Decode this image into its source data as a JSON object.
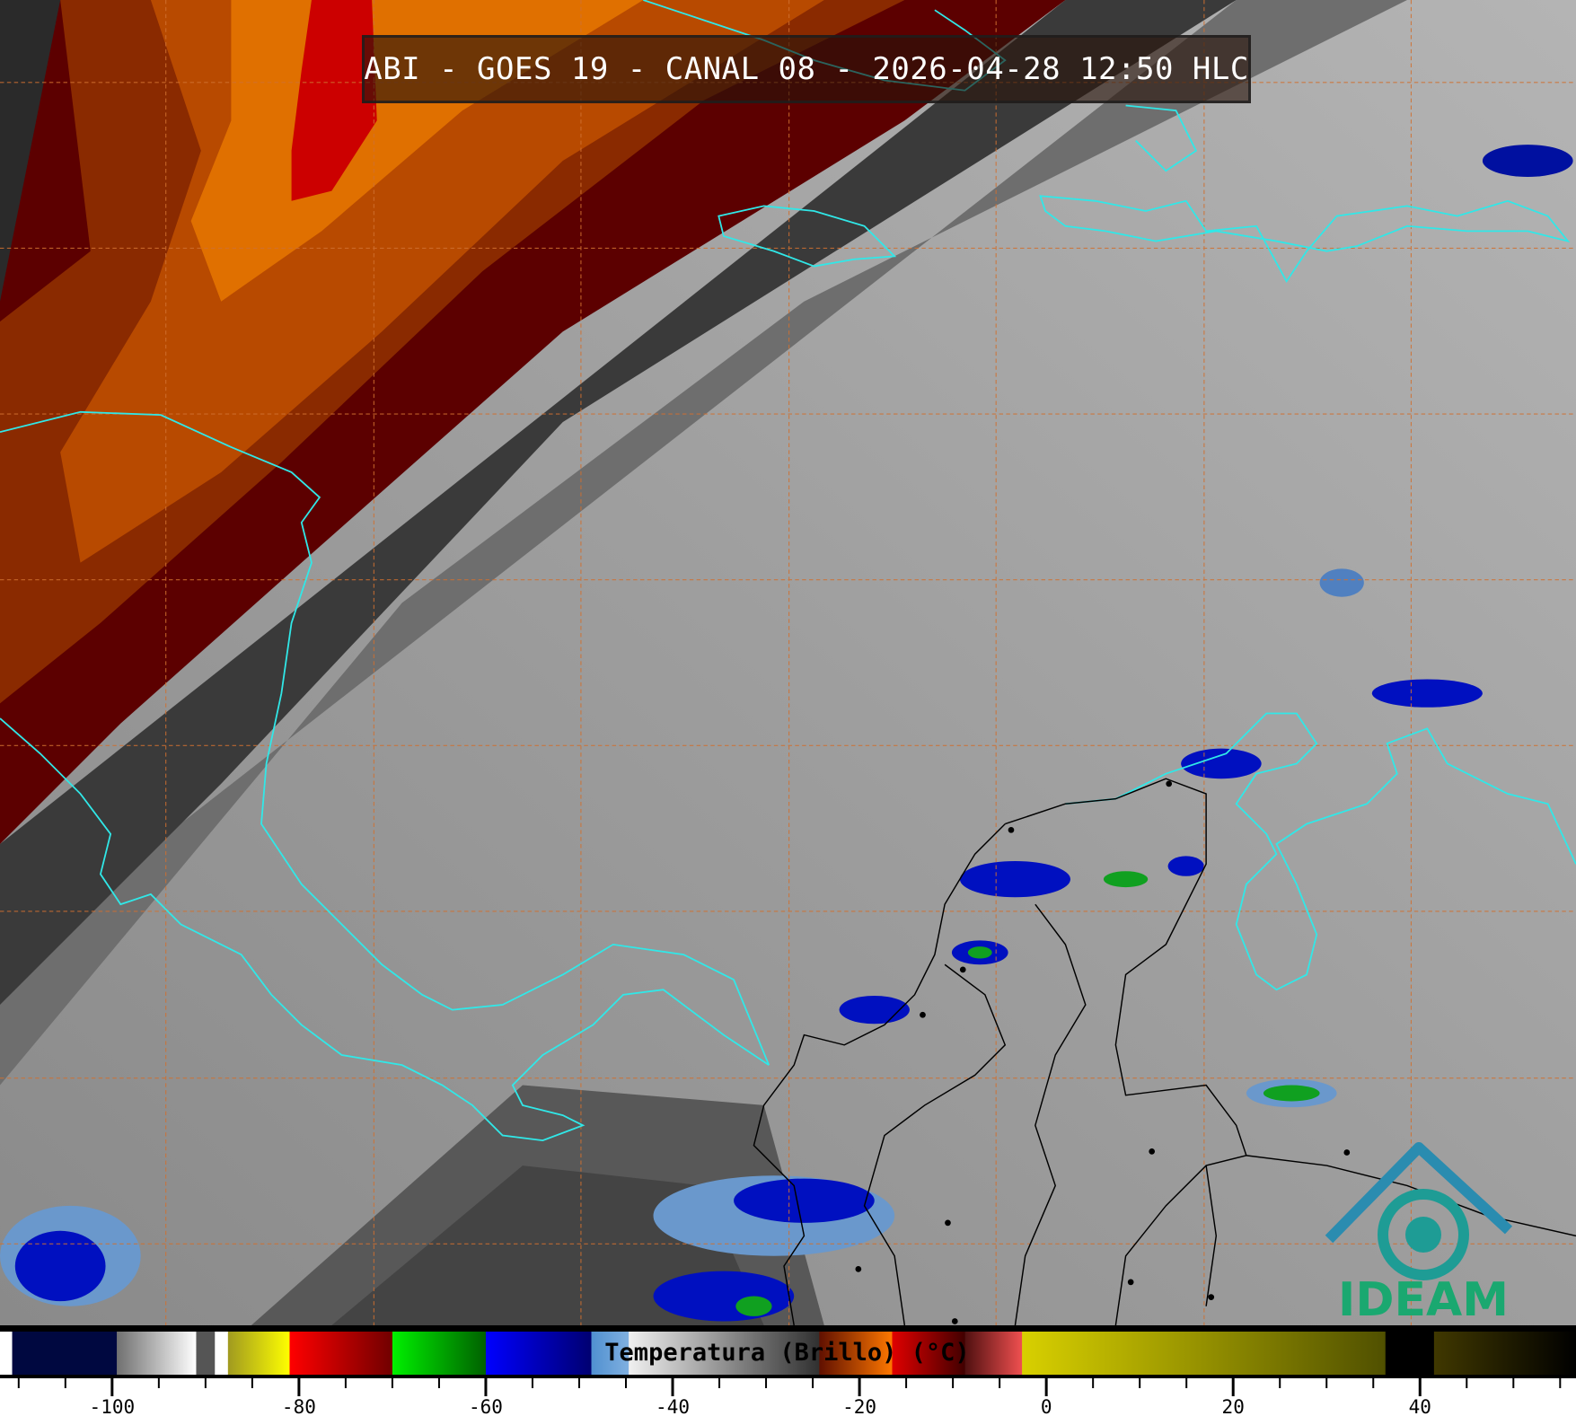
{
  "title": "ABI - GOES 19 - CANAL 08 - 2026-04-28 12:50 HLC",
  "colorbar": {
    "title": "Temperatura (Brillo) (°C)",
    "range": [
      -112,
      56.7
    ],
    "major_ticks": [
      -100,
      -80,
      -60,
      -40,
      -20,
      0,
      20,
      40
    ],
    "tick_labels": [
      "-100",
      "-80",
      "-60",
      "-40",
      "-20",
      "0",
      "20",
      "40"
    ],
    "minor_step": 5,
    "segments": [
      {
        "from": -112,
        "to": -110.7,
        "colors": [
          "#ffffff",
          "#ffffff"
        ]
      },
      {
        "from": -110.7,
        "to": -99.5,
        "colors": [
          "#000840",
          "#000840"
        ]
      },
      {
        "from": -99.5,
        "to": -91,
        "colors": [
          "#707070",
          "#ffffff"
        ]
      },
      {
        "from": -91,
        "to": -89,
        "colors": [
          "#555555",
          "#555555"
        ]
      },
      {
        "from": -89,
        "to": -87.6,
        "colors": [
          "#ffffff",
          "#ffffff"
        ]
      },
      {
        "from": -87.6,
        "to": -81,
        "colors": [
          "#a09a20",
          "#ffff00"
        ]
      },
      {
        "from": -81,
        "to": -70,
        "colors": [
          "#ff0000",
          "#700000"
        ]
      },
      {
        "from": -70,
        "to": -60,
        "colors": [
          "#00f000",
          "#006000"
        ]
      },
      {
        "from": -60,
        "to": -48.7,
        "colors": [
          "#0000ff",
          "#000070"
        ]
      },
      {
        "from": -48.7,
        "to": -44.7,
        "colors": [
          "#5090d0",
          "#80b0e0"
        ]
      },
      {
        "from": -44.7,
        "to": -24.3,
        "colors": [
          "#f0f0f0",
          "#303030"
        ]
      },
      {
        "from": -24.3,
        "to": -16.5,
        "colors": [
          "#601000",
          "#ff7800"
        ]
      },
      {
        "from": -16.5,
        "to": -8.7,
        "colors": [
          "#e00000",
          "#400000"
        ]
      },
      {
        "from": -8.7,
        "to": -2.6,
        "colors": [
          "#501010",
          "#f05050"
        ]
      },
      {
        "from": -2.6,
        "to": 36.3,
        "colors": [
          "#d8d000",
          "#505000"
        ]
      },
      {
        "from": 36.3,
        "to": 41.5,
        "colors": [
          "#000000",
          "#000000"
        ]
      },
      {
        "from": 41.5,
        "to": 56.7,
        "colors": [
          "#403800",
          "#000000"
        ]
      }
    ]
  },
  "map": {
    "coastline_color": "#30e8e8",
    "border_color": "#000000",
    "grid_color": "#d07030"
  },
  "logo": {
    "text": "IDEAM",
    "color": "#1aa870",
    "arc_color": "#2a8cb0"
  }
}
